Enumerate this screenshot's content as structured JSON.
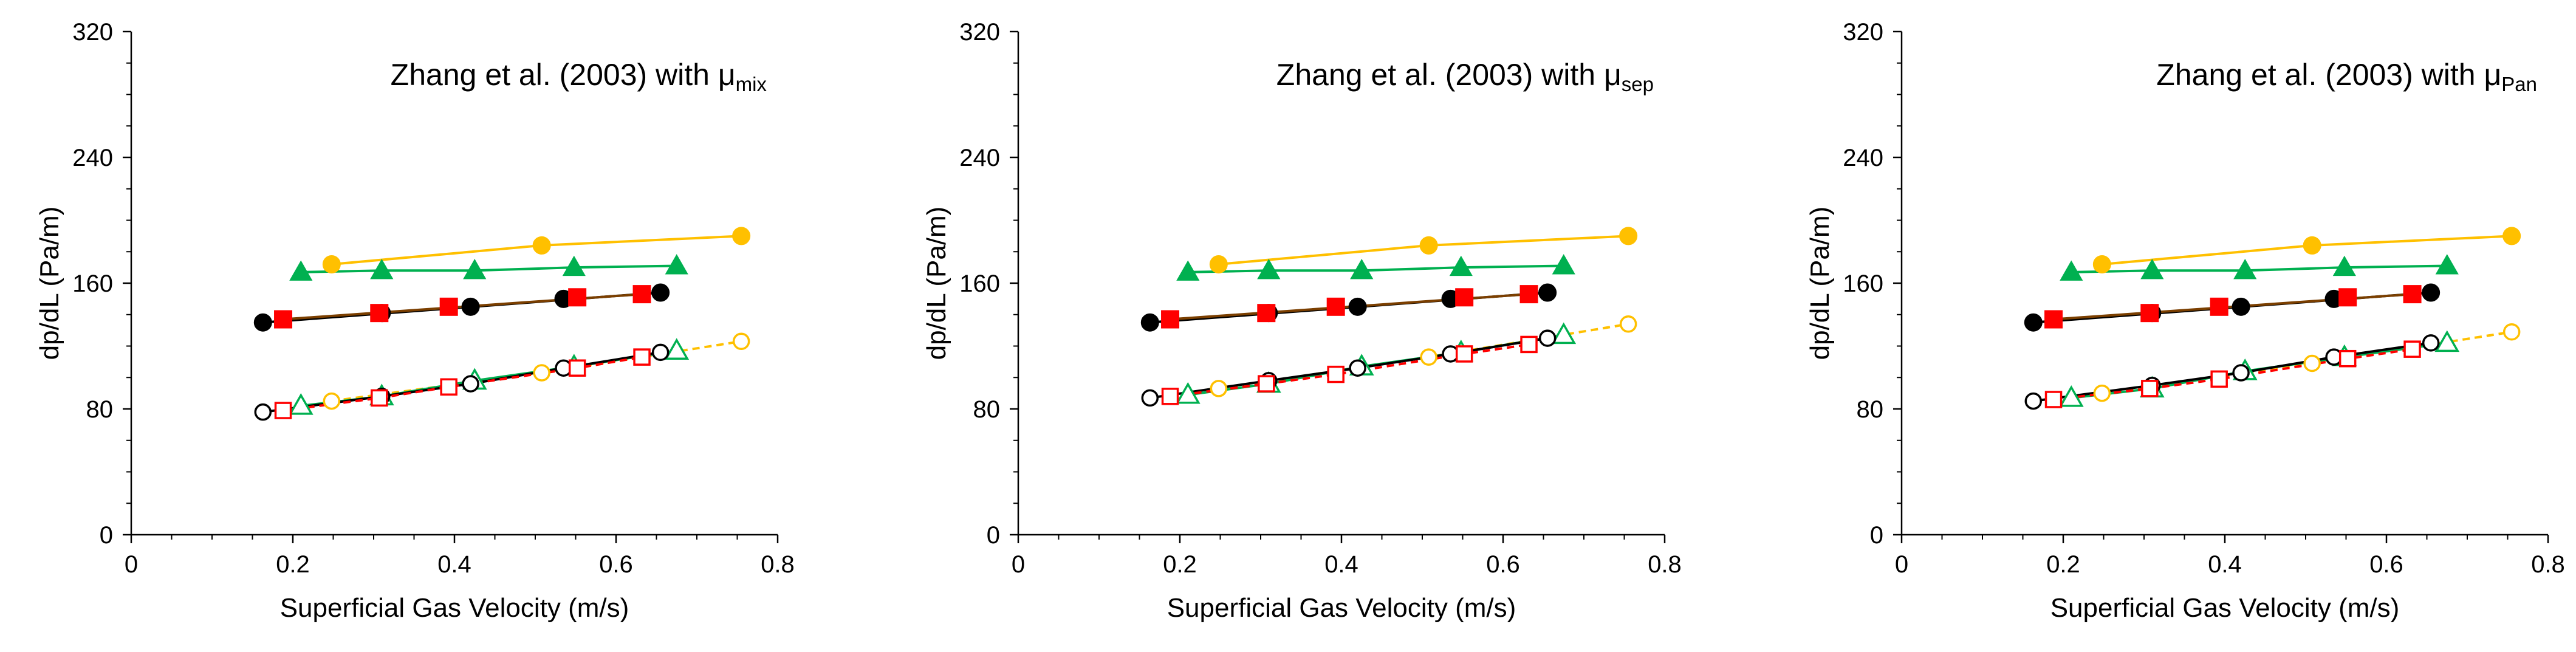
{
  "colors": {
    "black": "#000000",
    "red": "#ff0000",
    "orange": "#ffc000",
    "green": "#00b050",
    "brown": "#7b3f00"
  },
  "chart_data": [
    {
      "type": "scatter",
      "title_main": "Zhang et al. (2003) with μ",
      "title_sub": "mix",
      "xlabel": "Superficial Gas Velocity (m/s)",
      "ylabel": "dp/dL (Pa/m)",
      "xlim": [
        0,
        0.8
      ],
      "ylim": [
        0,
        320
      ],
      "xticks": [
        0,
        0.2,
        0.4,
        0.6,
        0.8
      ],
      "xtick_labels": [
        "0",
        "0.2",
        "0.4",
        "0.6",
        "0.8"
      ],
      "yticks": [
        0,
        80,
        160,
        240,
        320
      ],
      "ytick_labels": [
        "0",
        "80",
        "160",
        "240",
        "320"
      ],
      "series": [
        {
          "name": "exp-black",
          "marker": "circle",
          "filled": true,
          "color": "black",
          "line": "none",
          "x": [
            0.163,
            0.31,
            0.42,
            0.535,
            0.655
          ],
          "y": [
            135,
            141,
            145,
            150,
            154
          ]
        },
        {
          "name": "exp-red",
          "marker": "square",
          "filled": true,
          "color": "red",
          "line": "none",
          "x": [
            0.188,
            0.307,
            0.393,
            0.552,
            0.632
          ],
          "y": [
            137,
            141,
            145,
            151,
            153
          ]
        },
        {
          "name": "exp-orange",
          "marker": "circle",
          "filled": true,
          "color": "orange",
          "line": "solid",
          "x": [
            0.248,
            0.508,
            0.755
          ],
          "y": [
            172,
            184,
            190
          ]
        },
        {
          "name": "exp-green",
          "marker": "triangle",
          "filled": true,
          "color": "green",
          "line": "solid",
          "x": [
            0.21,
            0.31,
            0.425,
            0.548,
            0.675
          ],
          "y": [
            167,
            168,
            168,
            170,
            171
          ]
        },
        {
          "name": "fit-black",
          "marker": "none",
          "color": "black",
          "line": "solid",
          "x": [
            0.163,
            0.655
          ],
          "y": [
            135,
            154
          ]
        },
        {
          "name": "fit-red",
          "marker": "none",
          "color": "brown",
          "line": "solid",
          "x": [
            0.188,
            0.632
          ],
          "y": [
            137,
            153
          ]
        },
        {
          "name": "model-black",
          "marker": "circle",
          "filled": false,
          "color": "black",
          "line": "solid",
          "x": [
            0.163,
            0.31,
            0.42,
            0.535,
            0.655
          ],
          "y": [
            78,
            88,
            96,
            106,
            116
          ]
        },
        {
          "name": "model-red",
          "marker": "square",
          "filled": false,
          "color": "red",
          "line": "dashed",
          "x": [
            0.188,
            0.307,
            0.393,
            0.552,
            0.632
          ],
          "y": [
            79,
            87,
            94,
            106,
            113
          ]
        },
        {
          "name": "model-orange",
          "marker": "circle",
          "filled": false,
          "color": "orange",
          "line": "dashed",
          "x": [
            0.248,
            0.508,
            0.755
          ],
          "y": [
            85,
            103,
            123
          ]
        },
        {
          "name": "model-green",
          "marker": "triangle",
          "filled": false,
          "color": "green",
          "line": "solid",
          "x": [
            0.21,
            0.31,
            0.425,
            0.548,
            0.675
          ],
          "y": [
            82,
            88,
            98,
            107,
            117
          ]
        }
      ]
    },
    {
      "type": "scatter",
      "title_main": "Zhang et al. (2003) with μ",
      "title_sub": "sep",
      "xlabel": "Superficial Gas Velocity (m/s)",
      "ylabel": "dp/dL (Pa/m)",
      "xlim": [
        0,
        0.8
      ],
      "ylim": [
        0,
        320
      ],
      "xticks": [
        0,
        0.2,
        0.4,
        0.6,
        0.8
      ],
      "xtick_labels": [
        "0",
        "0.2",
        "0.4",
        "0.6",
        "0.8"
      ],
      "yticks": [
        0,
        80,
        160,
        240,
        320
      ],
      "ytick_labels": [
        "0",
        "80",
        "160",
        "240",
        "320"
      ],
      "series": [
        {
          "name": "exp-black",
          "marker": "circle",
          "filled": true,
          "color": "black",
          "line": "none",
          "x": [
            0.163,
            0.31,
            0.42,
            0.535,
            0.655
          ],
          "y": [
            135,
            141,
            145,
            150,
            154
          ]
        },
        {
          "name": "exp-red",
          "marker": "square",
          "filled": true,
          "color": "red",
          "line": "none",
          "x": [
            0.188,
            0.307,
            0.393,
            0.552,
            0.632
          ],
          "y": [
            137,
            141,
            145,
            151,
            153
          ]
        },
        {
          "name": "exp-orange",
          "marker": "circle",
          "filled": true,
          "color": "orange",
          "line": "solid",
          "x": [
            0.248,
            0.508,
            0.755
          ],
          "y": [
            172,
            184,
            190
          ]
        },
        {
          "name": "exp-green",
          "marker": "triangle",
          "filled": true,
          "color": "green",
          "line": "solid",
          "x": [
            0.21,
            0.31,
            0.425,
            0.548,
            0.675
          ],
          "y": [
            167,
            168,
            168,
            170,
            171
          ]
        },
        {
          "name": "fit-black",
          "marker": "none",
          "color": "black",
          "line": "solid",
          "x": [
            0.163,
            0.655
          ],
          "y": [
            135,
            154
          ]
        },
        {
          "name": "fit-red",
          "marker": "none",
          "color": "brown",
          "line": "solid",
          "x": [
            0.188,
            0.632
          ],
          "y": [
            137,
            153
          ]
        },
        {
          "name": "model-black",
          "marker": "circle",
          "filled": false,
          "color": "black",
          "line": "solid",
          "x": [
            0.163,
            0.31,
            0.42,
            0.535,
            0.655
          ],
          "y": [
            87,
            98,
            106,
            115,
            125
          ]
        },
        {
          "name": "model-red",
          "marker": "square",
          "filled": false,
          "color": "red",
          "line": "dashed",
          "x": [
            0.188,
            0.307,
            0.393,
            0.552,
            0.632
          ],
          "y": [
            88,
            96,
            102,
            115,
            121
          ]
        },
        {
          "name": "model-orange",
          "marker": "circle",
          "filled": false,
          "color": "orange",
          "line": "dashed",
          "x": [
            0.248,
            0.508,
            0.755
          ],
          "y": [
            93,
            113,
            134
          ]
        },
        {
          "name": "model-green",
          "marker": "triangle",
          "filled": false,
          "color": "green",
          "line": "solid",
          "x": [
            0.21,
            0.31,
            0.425,
            0.548,
            0.675
          ],
          "y": [
            89,
            96,
            107,
            116,
            127
          ]
        }
      ]
    },
    {
      "type": "scatter",
      "title_main": "Zhang et al. (2003) with μ",
      "title_sub": "Pan",
      "xlabel": "Superficial Gas Velocity (m/s)",
      "ylabel": "dp/dL (Pa/m)",
      "xlim": [
        0,
        0.8
      ],
      "ylim": [
        0,
        320
      ],
      "xticks": [
        0,
        0.2,
        0.4,
        0.6,
        0.8
      ],
      "xtick_labels": [
        "0",
        "0.2",
        "0.4",
        "0.6",
        "0.8"
      ],
      "yticks": [
        0,
        80,
        160,
        240,
        320
      ],
      "ytick_labels": [
        "0",
        "80",
        "160",
        "240",
        "320"
      ],
      "series": [
        {
          "name": "exp-black",
          "marker": "circle",
          "filled": true,
          "color": "black",
          "line": "none",
          "x": [
            0.163,
            0.31,
            0.42,
            0.535,
            0.655
          ],
          "y": [
            135,
            141,
            145,
            150,
            154
          ]
        },
        {
          "name": "exp-red",
          "marker": "square",
          "filled": true,
          "color": "red",
          "line": "none",
          "x": [
            0.188,
            0.307,
            0.393,
            0.552,
            0.632
          ],
          "y": [
            137,
            141,
            145,
            151,
            153
          ]
        },
        {
          "name": "exp-orange",
          "marker": "circle",
          "filled": true,
          "color": "orange",
          "line": "solid",
          "x": [
            0.248,
            0.508,
            0.755
          ],
          "y": [
            172,
            184,
            190
          ]
        },
        {
          "name": "exp-green",
          "marker": "triangle",
          "filled": true,
          "color": "green",
          "line": "solid",
          "x": [
            0.21,
            0.31,
            0.425,
            0.548,
            0.675
          ],
          "y": [
            167,
            168,
            168,
            170,
            171
          ]
        },
        {
          "name": "fit-black",
          "marker": "none",
          "color": "black",
          "line": "solid",
          "x": [
            0.163,
            0.655
          ],
          "y": [
            135,
            154
          ]
        },
        {
          "name": "fit-red",
          "marker": "none",
          "color": "brown",
          "line": "solid",
          "x": [
            0.188,
            0.632
          ],
          "y": [
            137,
            153
          ]
        },
        {
          "name": "model-black",
          "marker": "circle",
          "filled": false,
          "color": "black",
          "line": "solid",
          "x": [
            0.163,
            0.31,
            0.42,
            0.535,
            0.655
          ],
          "y": [
            85,
            95,
            103,
            113,
            122
          ]
        },
        {
          "name": "model-red",
          "marker": "square",
          "filled": false,
          "color": "red",
          "line": "dashed",
          "x": [
            0.188,
            0.307,
            0.393,
            0.552,
            0.632
          ],
          "y": [
            86,
            93,
            99,
            112,
            118
          ]
        },
        {
          "name": "model-orange",
          "marker": "circle",
          "filled": false,
          "color": "orange",
          "line": "dashed",
          "x": [
            0.248,
            0.508,
            0.755
          ],
          "y": [
            90,
            109,
            129
          ]
        },
        {
          "name": "model-green",
          "marker": "triangle",
          "filled": false,
          "color": "green",
          "line": "solid",
          "x": [
            0.21,
            0.31,
            0.425,
            0.548,
            0.675
          ],
          "y": [
            87,
            93,
            104,
            113,
            122
          ]
        }
      ]
    }
  ]
}
